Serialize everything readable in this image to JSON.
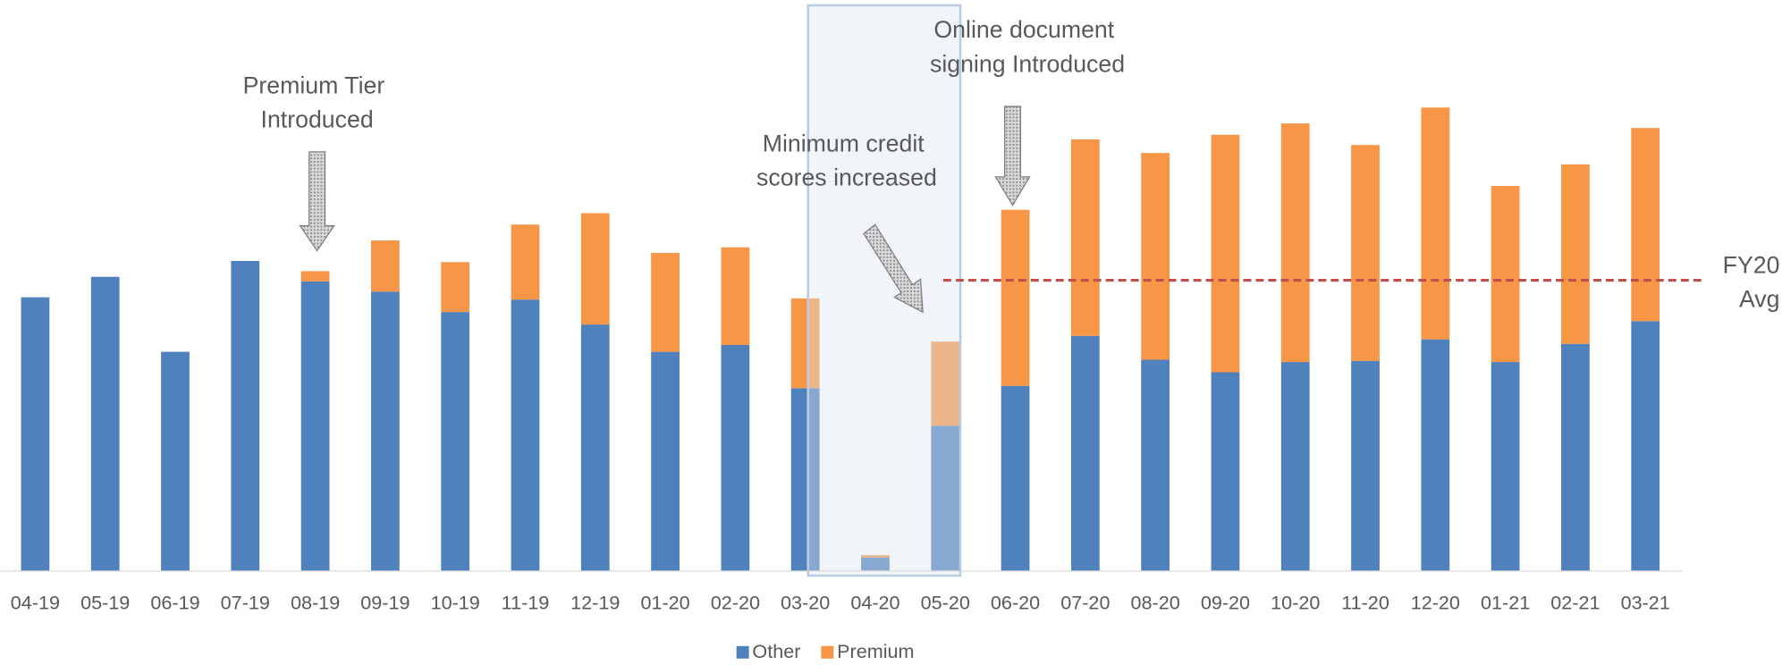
{
  "chart_data": {
    "type": "bar",
    "stacked": true,
    "categories": [
      "04-19",
      "05-19",
      "06-19",
      "07-19",
      "08-19",
      "09-19",
      "10-19",
      "11-19",
      "12-19",
      "01-20",
      "02-20",
      "03-20",
      "04-20",
      "05-20",
      "06-20",
      "07-20",
      "08-20",
      "09-20",
      "10-20",
      "11-20",
      "12-20",
      "01-21",
      "02-21",
      "03-21"
    ],
    "series": [
      {
        "name": "Other",
        "color": "#4f81bd",
        "values": [
          241,
          259,
          193,
          273,
          255,
          246,
          228,
          239,
          217,
          193,
          199,
          161,
          12,
          128,
          163,
          207,
          186,
          175,
          184,
          185,
          204,
          184,
          200,
          220
        ]
      },
      {
        "name": "Premium",
        "color": "#f79646",
        "values": [
          0,
          0,
          0,
          0,
          9,
          45,
          44,
          66,
          98,
          87,
          86,
          79,
          2,
          74,
          155,
          173,
          182,
          209,
          210,
          190,
          204,
          155,
          158,
          170
        ]
      }
    ],
    "ylim": [
      0,
      420
    ],
    "legend": "bottom",
    "reference_line": {
      "label": [
        "FY20",
        "Avg"
      ],
      "value": 256,
      "color": "#c0504d"
    },
    "annotations": [
      {
        "text": [
          "Premium Tier",
          "Introduced"
        ]
      },
      {
        "text": [
          "Minimum credit",
          "scores increased"
        ]
      },
      {
        "text": [
          "Online document",
          "signing Introduced"
        ]
      }
    ]
  }
}
